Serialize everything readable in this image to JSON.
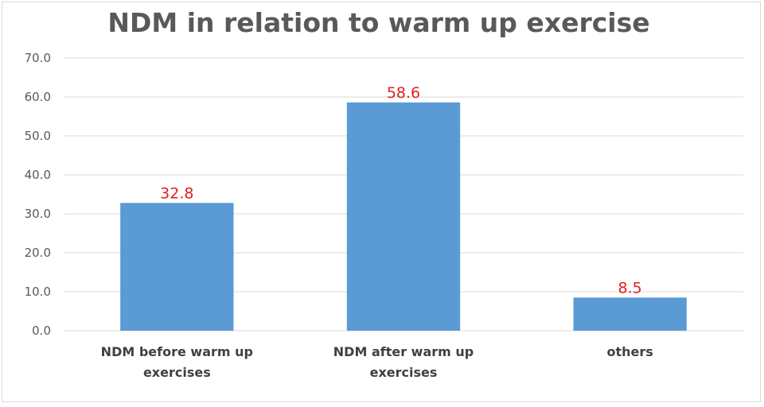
{
  "chart_data": {
    "type": "bar",
    "title": "NDM in relation to warm up exercise",
    "categories": [
      [
        "NDM before warm up",
        "exercises"
      ],
      [
        "NDM after warm up",
        "exercises"
      ],
      [
        "others"
      ]
    ],
    "values": [
      32.8,
      58.6,
      8.5
    ],
    "data_labels": [
      "32.8",
      "58.6",
      "8.5"
    ],
    "ylim": [
      0,
      70
    ],
    "yticks": [
      "0.0",
      "10.0",
      "20.0",
      "30.0",
      "40.0",
      "50.0",
      "60.0",
      "70.0"
    ],
    "xlabel": "",
    "ylabel": "",
    "grid": true,
    "bar_color": "#5b9bd5",
    "label_color": "#e02020",
    "grid_color": "#d9d9d9"
  }
}
